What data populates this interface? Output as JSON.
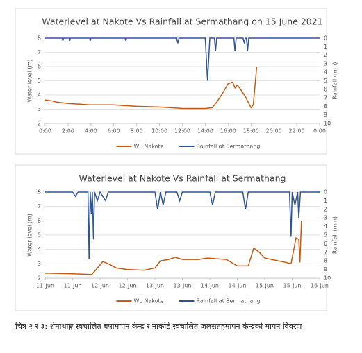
{
  "chart_data": [
    {
      "type": "line",
      "title": "Waterlevel at Nakote Vs Rainfall at Sermathang on 15 June 2021",
      "y_label": "Water level (m)",
      "y2_label": "Rainfall (mm)",
      "legend": "bottom",
      "grid": true,
      "xlim": [
        0,
        24
      ],
      "xticks": [
        {
          "value": 0,
          "label": "0:00"
        },
        {
          "value": 2,
          "label": "2:00"
        },
        {
          "value": 4,
          "label": "4:00"
        },
        {
          "value": 6,
          "label": "6:00"
        },
        {
          "value": 8,
          "label": "8:00"
        },
        {
          "value": 10,
          "label": "10:00"
        },
        {
          "value": 12,
          "label": "12:00"
        },
        {
          "value": 14,
          "label": "14:00"
        },
        {
          "value": 16,
          "label": "16:00"
        },
        {
          "value": 18,
          "label": "18:00"
        },
        {
          "value": 20,
          "label": "20:00"
        },
        {
          "value": 22,
          "label": "22:00"
        },
        {
          "value": 24,
          "label": "0:00"
        }
      ],
      "ylim": [
        2,
        8
      ],
      "yticks": [
        2,
        3,
        4,
        5,
        6,
        7,
        8
      ],
      "y2lim": [
        10,
        0
      ],
      "y2ticks": [
        0,
        1,
        2,
        3,
        4,
        5,
        6,
        7,
        8,
        9,
        10
      ],
      "series": [
        {
          "name": "WL Nakote",
          "color": "#c55a11",
          "x": [
            0,
            0.5,
            1,
            2,
            3,
            4,
            6,
            7,
            8,
            10,
            11,
            12,
            14,
            14.6,
            15,
            15.5,
            16,
            16.4,
            16.6,
            16.8,
            17,
            17.5,
            18,
            18.2,
            18.5
          ],
          "values": [
            3.65,
            3.6,
            3.5,
            3.4,
            3.35,
            3.3,
            3.3,
            3.25,
            3.2,
            3.15,
            3.1,
            3.05,
            3.05,
            3.1,
            3.5,
            4.1,
            4.8,
            4.9,
            4.5,
            4.7,
            4.5,
            3.9,
            3.1,
            3.3,
            6.0
          ]
        },
        {
          "name": "Rainfall at Sermathang",
          "color": "#2f5597",
          "axis": "y2",
          "x": [
            0,
            1.5,
            1.55,
            1.6,
            2.1,
            2.15,
            2.2,
            3.9,
            3.95,
            4,
            7,
            7.05,
            7.1,
            11.5,
            11.6,
            11.7,
            14,
            14.2,
            14.4,
            14.8,
            14.9,
            15,
            16.5,
            16.6,
            16.7,
            17.3,
            17.4,
            17.5,
            17.6,
            17.7,
            17.8,
            24
          ],
          "values": [
            0,
            0,
            0.3,
            0,
            0,
            0.3,
            0,
            0,
            0.3,
            0,
            0,
            0.3,
            0,
            0,
            0.6,
            0,
            0,
            5,
            0,
            0,
            1.5,
            0,
            0,
            1.5,
            0,
            0,
            0.5,
            0,
            0,
            1.5,
            0,
            0
          ]
        }
      ]
    },
    {
      "type": "line",
      "title": "Waterlevel at Nakote Vs Rainfall at Sermathang",
      "y_label": "Water level (m)",
      "y2_label": "Rainfall (mm)",
      "legend": "bottom",
      "grid": true,
      "xlim": [
        0,
        5
      ],
      "xticks": [
        {
          "value": 0,
          "label": "11-Jun"
        },
        {
          "value": 0.5,
          "label": "11-Jun"
        },
        {
          "value": 1,
          "label": "12-Jun"
        },
        {
          "value": 1.5,
          "label": "12-Jun"
        },
        {
          "value": 2,
          "label": "13-Jun"
        },
        {
          "value": 2.5,
          "label": "13-Jun"
        },
        {
          "value": 3,
          "label": "14-Jun"
        },
        {
          "value": 3.5,
          "label": "14-Jun"
        },
        {
          "value": 4,
          "label": "15-Jun"
        },
        {
          "value": 4.5,
          "label": "15-Jun"
        },
        {
          "value": 5,
          "label": "16-Jun"
        }
      ],
      "ylim": [
        2,
        8
      ],
      "yticks": [
        2,
        3,
        4,
        5,
        6,
        7,
        8
      ],
      "y2lim": [
        10,
        0
      ],
      "y2ticks": [
        0,
        1,
        2,
        3,
        4,
        5,
        6,
        7,
        8,
        9,
        10
      ],
      "series": [
        {
          "name": "WL Nakote",
          "color": "#c55a11",
          "x": [
            0,
            0.5,
            0.85,
            0.95,
            1.05,
            1.15,
            1.3,
            1.5,
            1.8,
            2.0,
            2.1,
            2.25,
            2.37,
            2.5,
            2.8,
            2.95,
            3.3,
            3.5,
            3.7,
            3.8,
            3.9,
            4.0,
            4.38,
            4.48,
            4.57,
            4.62,
            4.64,
            4.67
          ],
          "values": [
            2.35,
            2.3,
            2.25,
            2.7,
            3.15,
            3.0,
            2.7,
            2.6,
            2.55,
            2.7,
            3.2,
            3.3,
            3.45,
            3.3,
            3.3,
            3.4,
            3.3,
            2.85,
            2.85,
            4.1,
            3.8,
            3.4,
            3.1,
            3.0,
            4.8,
            4.7,
            3.1,
            6.0
          ]
        },
        {
          "name": "Rainfall at Sermathang",
          "color": "#2f5597",
          "axis": "y2",
          "x": [
            0,
            0.5,
            0.55,
            0.6,
            0.78,
            0.8,
            0.82,
            0.84,
            0.86,
            0.88,
            0.9,
            0.95,
            1.0,
            1.1,
            1.15,
            2.0,
            2.05,
            2.1,
            2.15,
            2.2,
            2.4,
            2.45,
            2.5,
            3.0,
            3.05,
            3.1,
            3.6,
            3.65,
            3.7,
            4.45,
            4.48,
            4.5,
            4.55,
            4.6,
            4.62,
            4.65,
            5
          ],
          "values": [
            0,
            0,
            0.5,
            0,
            0,
            7.8,
            0,
            2.5,
            0,
            5.5,
            0,
            1,
            0,
            1,
            0,
            0,
            2,
            0,
            1.5,
            0,
            0,
            1,
            0,
            0,
            1.5,
            0,
            0,
            2,
            0,
            0,
            5.2,
            0,
            1.5,
            0,
            3,
            0,
            0
          ]
        }
      ]
    }
  ],
  "caption": "चित्र २ र ३: शेर्माथाङ्ग स्वचालित बर्षामापन केन्द्र र नाकोटे स्वचालित जलसतहमापन केन्द्रको मापन विवरण"
}
